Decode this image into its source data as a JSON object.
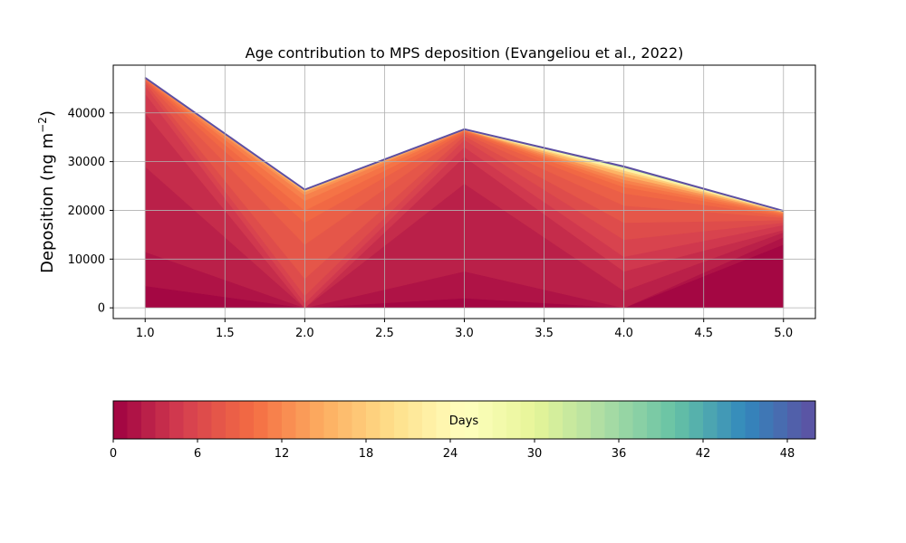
{
  "chart_data": {
    "type": "area",
    "title": "Age contribution to MPS deposition (Evangeliou et al., 2022)",
    "xlabel": "",
    "ylabel": "Deposition (ng m",
    "ylabel_sup": "−2",
    "ylabel_close": ")",
    "xlim": [
      0.8,
      5.2
    ],
    "ylim": [
      -2200,
      49800
    ],
    "x": [
      1.0,
      2.0,
      3.0,
      4.0,
      5.0
    ],
    "x_tick_labels": [
      "1.0",
      "1.5",
      "2.0",
      "2.5",
      "3.0",
      "3.5",
      "4.0",
      "4.5",
      "5.0"
    ],
    "x_ticks": [
      1.0,
      1.5,
      2.0,
      2.5,
      3.0,
      3.5,
      4.0,
      4.5,
      5.0
    ],
    "y_ticks": [
      0,
      10000,
      20000,
      30000,
      40000
    ],
    "y_tick_labels": [
      "0",
      "10000",
      "20000",
      "30000",
      "40000"
    ],
    "grid": true,
    "colormap": "Spectral",
    "colorbar": {
      "label": "Days",
      "range": [
        0,
        50
      ],
      "levels": 50,
      "ticks": [
        0,
        6,
        12,
        18,
        24,
        30,
        36,
        42,
        48
      ],
      "tick_labels": [
        "0",
        "6",
        "12",
        "18",
        "24",
        "30",
        "36",
        "42",
        "48"
      ]
    },
    "stack_boundaries": [
      {
        "day": 0,
        "values": [
          0,
          0,
          0,
          0,
          0
        ]
      },
      {
        "day": 1,
        "values": [
          4500,
          0,
          2000,
          0,
          13000
        ]
      },
      {
        "day": 2,
        "values": [
          11500,
          0,
          7500,
          0,
          14500
        ]
      },
      {
        "day": 3,
        "values": [
          29000,
          0,
          25500,
          3500,
          15500
        ]
      },
      {
        "day": 4,
        "values": [
          40000,
          0,
          31000,
          7500,
          16000
        ]
      },
      {
        "day": 5,
        "values": [
          44000,
          1000,
          33000,
          10500,
          17000
        ]
      },
      {
        "day": 6,
        "values": [
          45500,
          2500,
          34500,
          14000,
          17500
        ]
      },
      {
        "day": 7,
        "values": [
          46200,
          6000,
          35300,
          17500,
          18000
        ]
      },
      {
        "day": 8,
        "values": [
          46600,
          13000,
          35800,
          21000,
          18500
        ]
      },
      {
        "day": 9,
        "values": [
          46800,
          17500,
          36100,
          23500,
          18800
        ]
      },
      {
        "day": 10,
        "values": [
          46950,
          20000,
          36300,
          24800,
          19100
        ]
      },
      {
        "day": 11,
        "values": [
          47050,
          22000,
          36400,
          25600,
          19350
        ]
      },
      {
        "day": 12,
        "values": [
          47120,
          23200,
          36480,
          26300,
          19500
        ]
      },
      {
        "day": 14,
        "values": [
          47160,
          23800,
          36520,
          27000,
          19620
        ]
      },
      {
        "day": 17,
        "values": [
          47180,
          24050,
          36560,
          27700,
          19720
        ]
      },
      {
        "day": 20,
        "values": [
          47190,
          24150,
          36590,
          28200,
          19790
        ]
      },
      {
        "day": 25,
        "values": [
          47200,
          24200,
          36610,
          28600,
          19830
        ]
      },
      {
        "day": 32,
        "values": [
          47205,
          24230,
          36625,
          28800,
          19860
        ]
      },
      {
        "day": 40,
        "values": [
          47210,
          24250,
          36640,
          28950,
          19880
        ]
      },
      {
        "day": 50,
        "values": [
          47215,
          24260,
          36650,
          29000,
          19890
        ]
      }
    ]
  }
}
